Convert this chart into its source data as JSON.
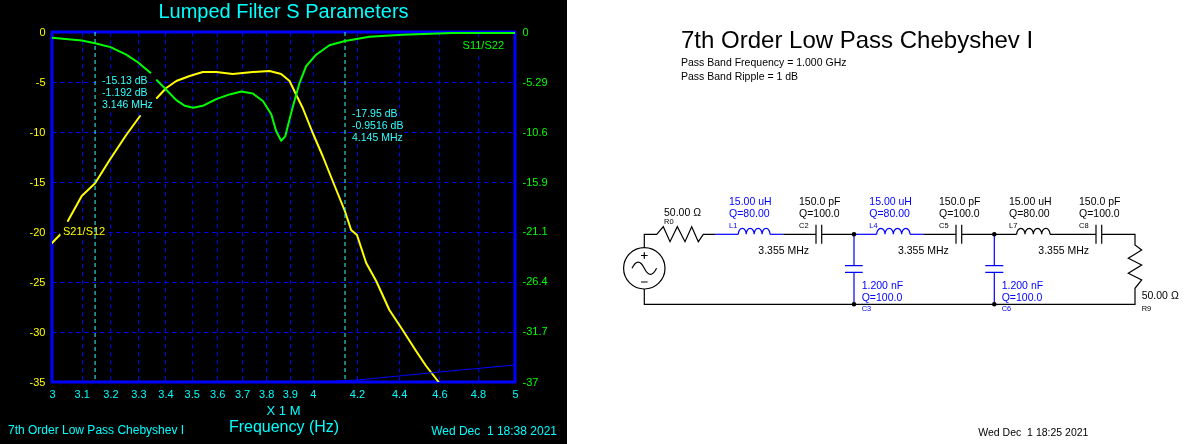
{
  "chart_data": [
    {
      "type": "line",
      "title": "Lumped Filter S Parameters",
      "xlabel": "Frequency (Hz)",
      "log": "x",
      "xlim": [
        3,
        5
      ],
      "xticks": [
        3,
        3.1,
        3.2,
        3.3,
        3.4,
        3.5,
        3.6,
        3.7,
        3.8,
        3.9,
        4,
        4.2,
        4.4,
        4.6,
        4.8,
        5
      ],
      "ylim": [
        -35,
        0
      ],
      "yticks": [
        -35,
        -30,
        -25,
        -20,
        -15,
        -10,
        -5,
        0
      ],
      "y2lim": [
        -37,
        0
      ],
      "y2ticks": [
        -37,
        -31.7,
        -26.4,
        -21.1,
        -15.9,
        -10.6,
        -5.29,
        0
      ],
      "grid": true,
      "series": [
        {
          "name": "S21/S12",
          "color": "#ffff00",
          "x": [
            3,
            3.029,
            3.04,
            3.053,
            3.1,
            3.146,
            3.197,
            3.256,
            3.306,
            3.34,
            3.368,
            3.403,
            3.441,
            3.492,
            3.543,
            3.596,
            3.662,
            3.744,
            3.814,
            3.863,
            3.899,
            3.928,
            3.956,
            4,
            4.044,
            4.089,
            4.145,
            4.173,
            4.2,
            4.243,
            4.29,
            4.353,
            4.417,
            4.483,
            4.533,
            4.596
          ],
          "values": [
            -21.1,
            -20.2,
            null,
            -18.9,
            -16.4,
            -15.13,
            -12.8,
            -10.3,
            -8.4,
            null,
            -6.6,
            -5.6,
            -4.9,
            -4.4,
            -4.0,
            -4.0,
            -4.2,
            -4.0,
            -3.9,
            -4.2,
            -4.9,
            -6.3,
            -7.6,
            -10.1,
            -12.4,
            -14.9,
            -17.95,
            -19.8,
            -20.3,
            -23.1,
            -24.9,
            -27.8,
            -29.8,
            -31.9,
            -33.4,
            -35.0
          ]
        },
        {
          "name": "S11/S22",
          "color": "#00ff00",
          "axis": "y2",
          "x": [
            3,
            3.1,
            3.146,
            3.2,
            3.256,
            3.298,
            3.344,
            3.356,
            3.368,
            3.403,
            3.441,
            3.473,
            3.505,
            3.543,
            3.596,
            3.649,
            3.697,
            3.744,
            3.786,
            3.821,
            3.842,
            3.863,
            3.881,
            3.896,
            3.913,
            3.942,
            3.971,
            4.015,
            4.074,
            4.145,
            4.258,
            4.417,
            4.667,
            5
          ],
          "values": [
            -0.6,
            -0.9,
            -1.192,
            -1.6,
            -2.4,
            -3.2,
            -4.3,
            null,
            -5.1,
            -6.1,
            -7.2,
            -7.8,
            -8.0,
            -7.8,
            -7.1,
            -6.6,
            -6.3,
            -6.5,
            -7.3,
            -8.7,
            -10.5,
            -11.5,
            -11.0,
            -9.5,
            -7.9,
            -5.4,
            -3.6,
            -2.4,
            -1.4,
            -0.9516,
            -0.5,
            -0.3,
            -0.1,
            -0.1
          ]
        },
        {
          "color": "#0000ff",
          "x": [
            4.03,
            4.2,
            4.4,
            4.6,
            5
          ],
          "values": [
            -35,
            -34.8,
            -34.4,
            -34.0,
            -33.3
          ]
        }
      ],
      "ref_lines": [
        {
          "axis": "x",
          "value": 3.146,
          "label": "-15.13 dB\n-1.192 dB\n3.146 MHz",
          "color": "#33ffff",
          "line_style": "dashed"
        },
        {
          "axis": "x",
          "value": 4.145,
          "label": "-17.95 dB\n-0.9516 dB\n4.145 MHz",
          "color": "#33ffff",
          "line_style": "dashed"
        }
      ],
      "annotations": [
        "X 1 M",
        "7th Order Low Pass Chebyshev I",
        "Wed Dec  1 18:38 2021"
      ]
    },
    {
      "type": "other",
      "title": "7th Order Low Pass Chebyshev I",
      "annotations": [
        "Pass Band Frequency = 1.000 GHz",
        "Pass Band Ripple = 1 dB",
        "50.00 Ω",
        "R0",
        "15.00 uH",
        "Q=80.00",
        "L1",
        "150.0 pF",
        "Q=100.0",
        "C2",
        "3.355 MHz",
        "15.00 uH",
        "Q=80.00",
        "L4",
        "150.0 pF",
        "Q=100.0",
        "C5",
        "3.355 MHz",
        "15.00 uH",
        "Q=80.00",
        "L7",
        "150.0 pF",
        "Q=100.0",
        "C8",
        "3.355 MHz",
        "1.200 nF",
        "Q=100.0",
        "C3",
        "1.200 nF",
        "Q=100.0",
        "C6",
        "50.00 Ω",
        "R9",
        "Wed Dec  1 18:25 2021"
      ]
    }
  ]
}
